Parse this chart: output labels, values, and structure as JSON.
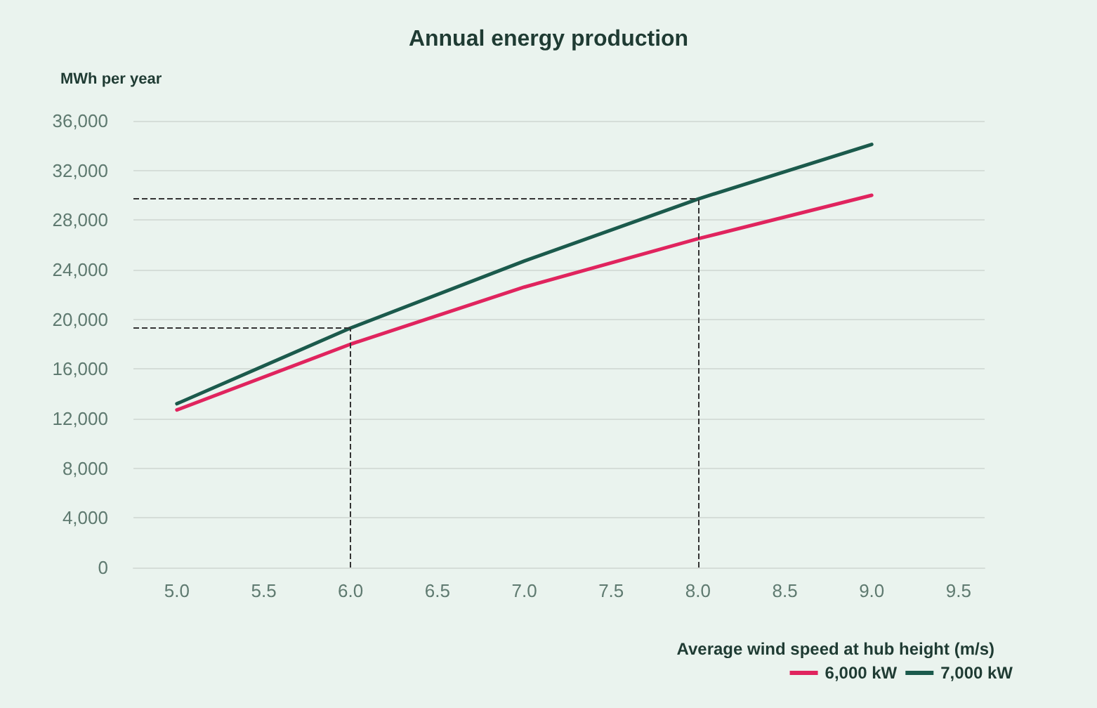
{
  "chart_data": {
    "type": "line",
    "title": "Annual energy production",
    "ylabel": "MWh per year",
    "xlabel": "Average wind speed at hub height (m/s)",
    "x": [
      5.0,
      6.0,
      7.0,
      8.0,
      9.0
    ],
    "series": [
      {
        "name": "6,000 kW",
        "color": "#e0245e",
        "values": [
          12700,
          18000,
          22600,
          26500,
          30000
        ]
      },
      {
        "name": "7,000 kW",
        "color": "#1b5a4c",
        "values": [
          13200,
          19300,
          24700,
          29700,
          34100
        ]
      }
    ],
    "xlim": [
      4.75,
      9.65
    ],
    "xticks": [
      {
        "value": 5.0,
        "label": "5.0"
      },
      {
        "value": 5.5,
        "label": "5.5"
      },
      {
        "value": 6.0,
        "label": "6.0"
      },
      {
        "value": 6.5,
        "label": "6.5"
      },
      {
        "value": 7.0,
        "label": "7.0"
      },
      {
        "value": 7.5,
        "label": "7.5"
      },
      {
        "value": 8.0,
        "label": "8.0"
      },
      {
        "value": 8.5,
        "label": "8.5"
      },
      {
        "value": 9.0,
        "label": "9.0"
      },
      {
        "value": 9.5,
        "label": "9.5"
      }
    ],
    "ylim": [
      0,
      36000
    ],
    "yticks": [
      {
        "value": 0,
        "label": "0"
      },
      {
        "value": 4000,
        "label": "4,000"
      },
      {
        "value": 8000,
        "label": "8,000"
      },
      {
        "value": 12000,
        "label": "12,000"
      },
      {
        "value": 16000,
        "label": "16,000"
      },
      {
        "value": 20000,
        "label": "20,000"
      },
      {
        "value": 24000,
        "label": "24,000"
      },
      {
        "value": 28000,
        "label": "28,000"
      },
      {
        "value": 32000,
        "label": "32,000"
      },
      {
        "value": 36000,
        "label": "36,000"
      }
    ],
    "ref_lines": [
      {
        "axis": "x",
        "value": 6.0,
        "color": "#333333",
        "line_style": "dashed"
      },
      {
        "axis": "y",
        "value": 19300,
        "color": "#333333",
        "line_style": "dashed"
      },
      {
        "axis": "x",
        "value": 8.0,
        "color": "#333333",
        "line_style": "dashed"
      },
      {
        "axis": "y",
        "value": 29700,
        "color": "#333333",
        "line_style": "dashed"
      }
    ],
    "grid": "y",
    "legend": "bottom right",
    "marker": "none",
    "line_style": "solid"
  }
}
